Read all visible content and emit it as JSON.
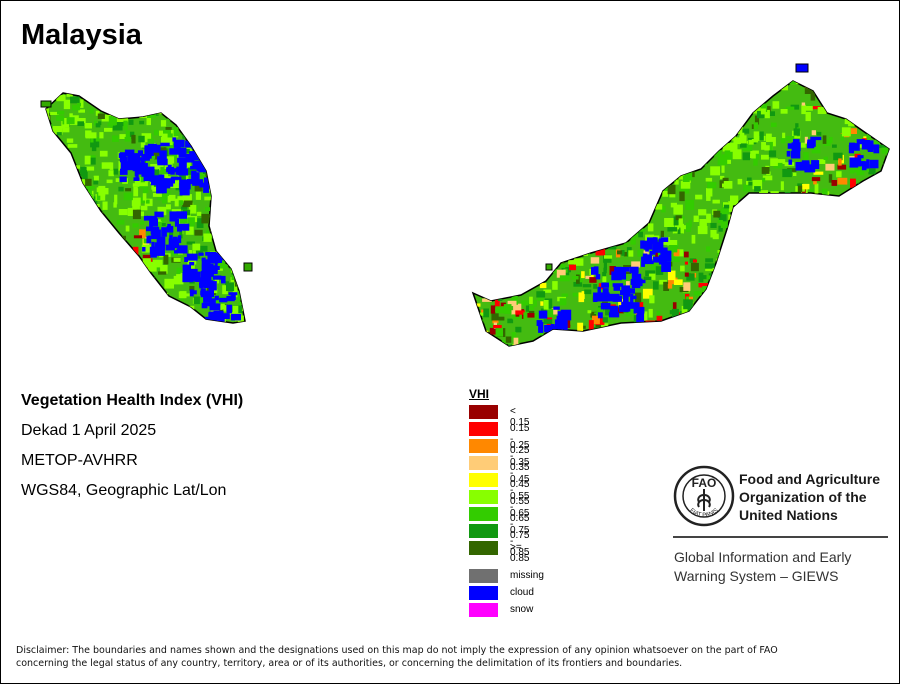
{
  "map": {
    "title": "Malaysia",
    "regions": [
      "peninsular-malaysia",
      "malaysian-borneo"
    ]
  },
  "info": {
    "index_name": "Vegetation Health Index (VHI)",
    "period": "Dekad 1 April 2025",
    "sensor": "METOP-AVHRR",
    "projection": "WGS84, Geographic Lat/Lon"
  },
  "legend": {
    "title": "VHI",
    "classes": [
      {
        "label": "< 0.15",
        "color": "#990000"
      },
      {
        "label": "0.15 - 0.25",
        "color": "#ff0000"
      },
      {
        "label": "0.25 - 0.35",
        "color": "#ff8800"
      },
      {
        "label": "0.35 - 0.45",
        "color": "#ffcc77"
      },
      {
        "label": "0.45 - 0.55",
        "color": "#ffff00"
      },
      {
        "label": "0.55 - 0.65",
        "color": "#88ff00"
      },
      {
        "label": "0.65 - 0.75",
        "color": "#33cc00"
      },
      {
        "label": "0.75 - 0.85",
        "color": "#119911"
      },
      {
        "label": ">= 0.85",
        "color": "#336600"
      }
    ],
    "other": [
      {
        "label": "missing",
        "color": "#707070"
      },
      {
        "label": "cloud",
        "color": "#0000ff"
      },
      {
        "label": "snow",
        "color": "#ff00ff"
      }
    ]
  },
  "fao": {
    "name_line1": "Food and Agriculture",
    "name_line2": "Organization of the",
    "name_line3": "United Nations",
    "emblem_motto": "FIAT PANIS",
    "giews_line1": "Global Information and Early",
    "giews_line2": "Warning System – GIEWS"
  },
  "disclaimer": {
    "line1": "Disclaimer: The boundaries and names shown and the designations used on this map do not imply the expression of any opinion whatsoever on the part of FAO",
    "line2": "concerning the legal status of any country, territory, area or of its authorities, or concerning the delimitation of its frontiers and boundaries."
  }
}
